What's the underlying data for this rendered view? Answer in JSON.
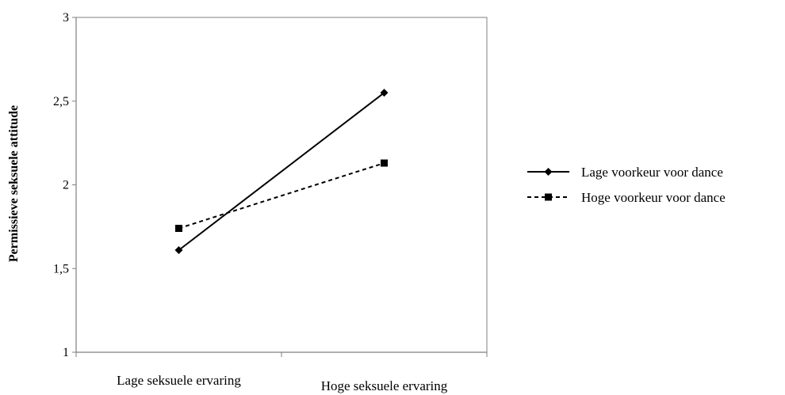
{
  "chart_data": {
    "type": "line",
    "title": "",
    "xlabel": "",
    "ylabel": "Permissieve seksuele attitude",
    "ylim": [
      1,
      3
    ],
    "yticks": [
      "1",
      "1,5",
      "2",
      "2,5",
      "3"
    ],
    "categories": [
      "Lage seksuele ervaring",
      "Hoge seksuele ervaring"
    ],
    "grid": false,
    "legend_position": "right",
    "series": [
      {
        "name": "Lage voorkeur voor dance",
        "values": [
          1.61,
          2.55
        ],
        "line_style": "solid",
        "marker": "diamond",
        "color": "#000000"
      },
      {
        "name": "Hoge voorkeur voor dance",
        "values": [
          1.74,
          2.13
        ],
        "line_style": "dashed",
        "marker": "square",
        "color": "#000000"
      }
    ]
  }
}
